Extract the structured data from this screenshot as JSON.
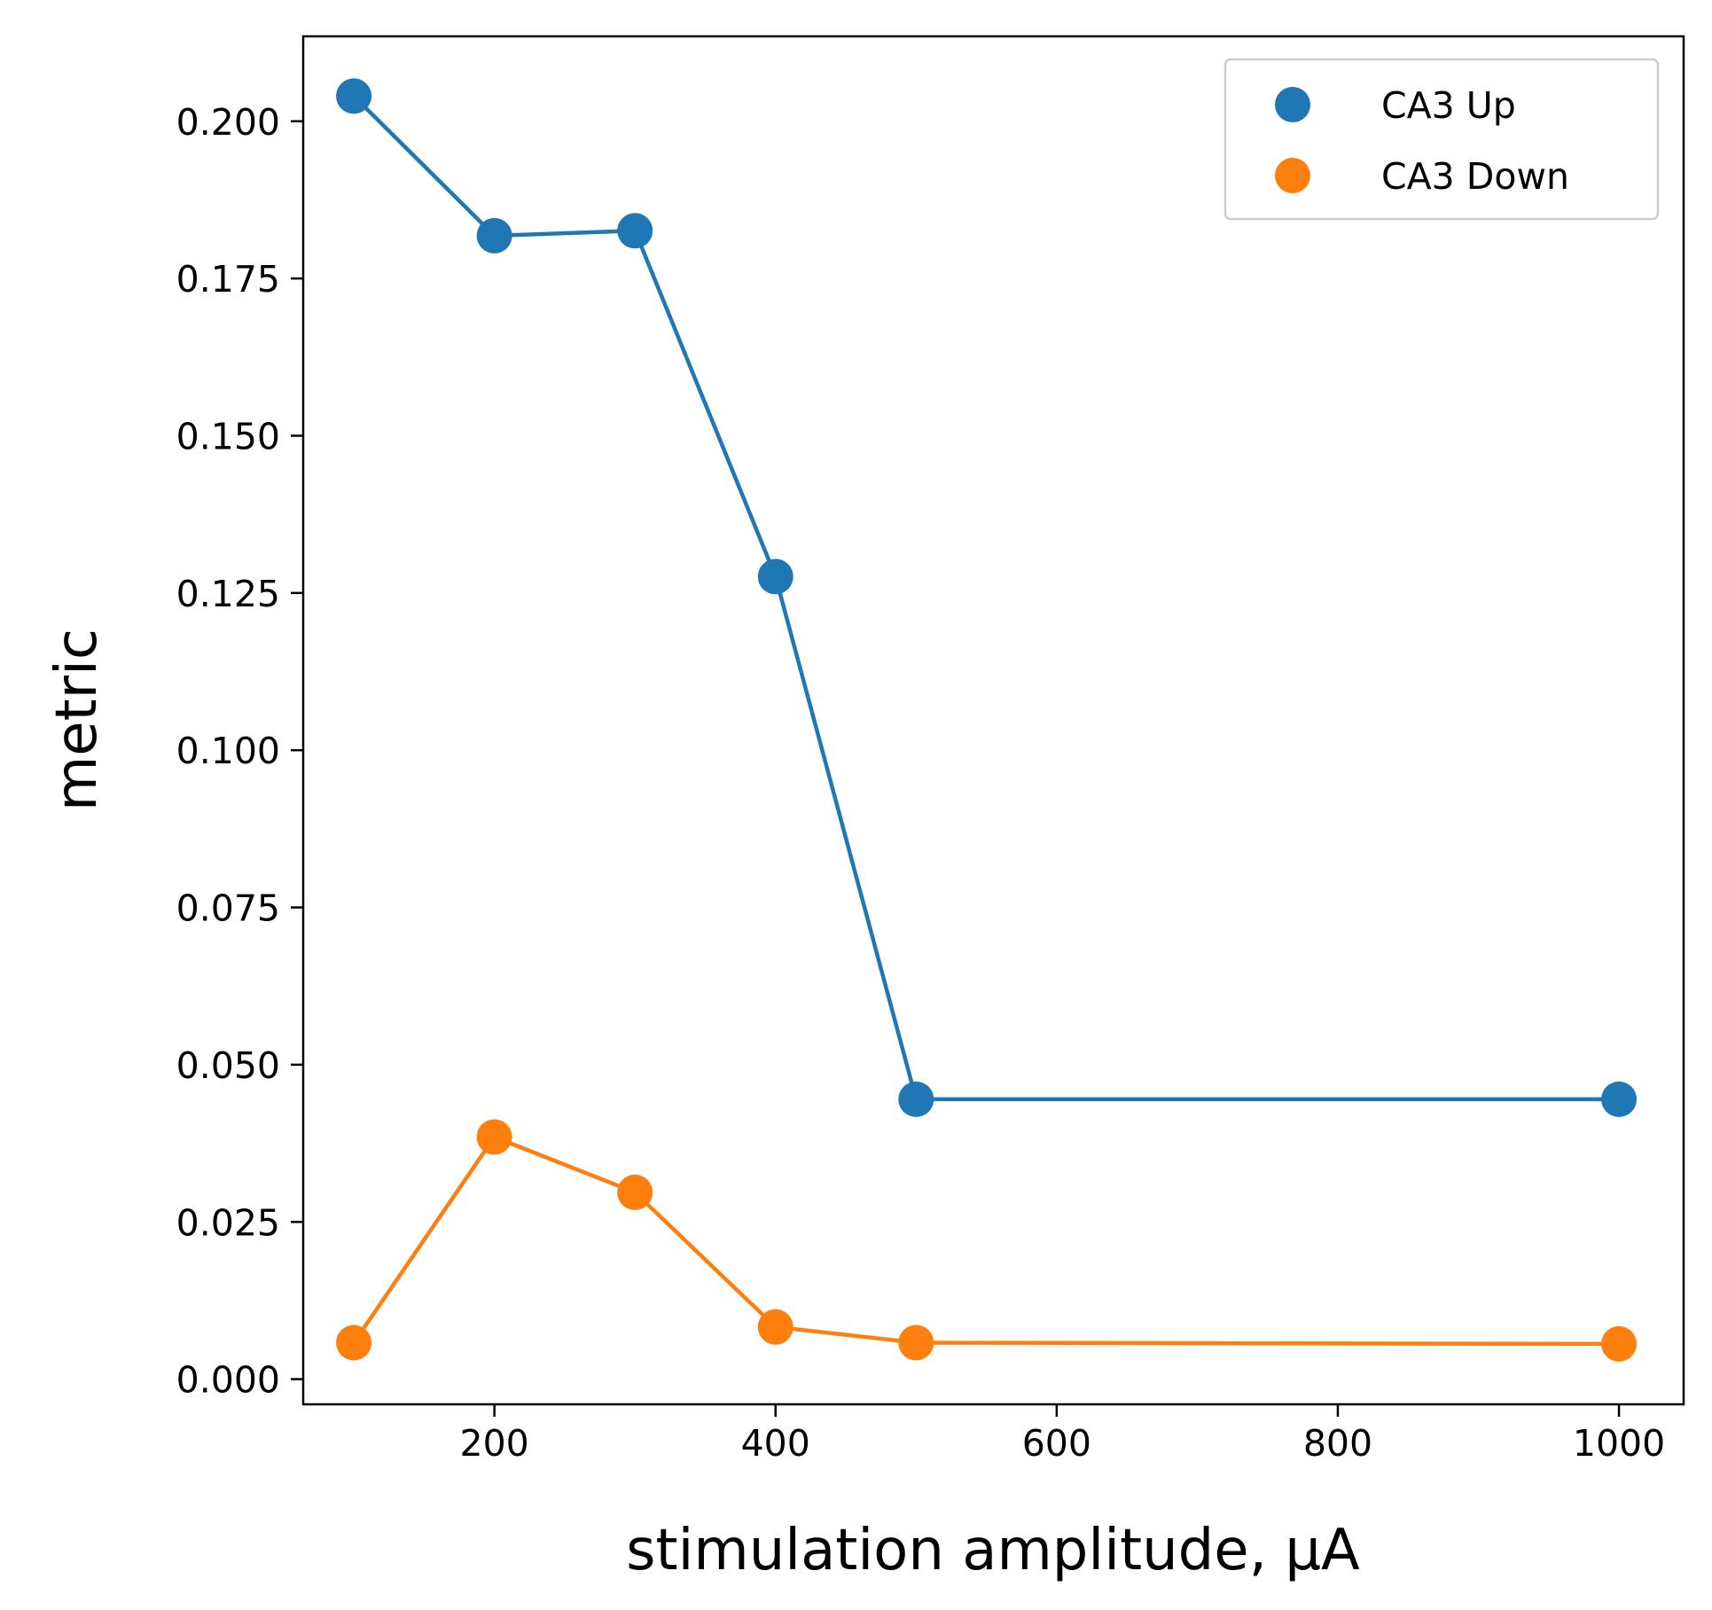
{
  "chart_data": {
    "type": "line",
    "xlabel": "stimulation amplitude, μA",
    "ylabel": "metric",
    "xlim": [
      64,
      1046
    ],
    "ylim": [
      -0.004,
      0.2135
    ],
    "xticks": [
      "200",
      "400",
      "600",
      "800",
      "1000"
    ],
    "yticks": [
      "0.000",
      "0.025",
      "0.050",
      "0.075",
      "0.100",
      "0.125",
      "0.150",
      "0.175",
      "0.200"
    ],
    "grid": false,
    "legend_position": "top-right",
    "x": [
      100,
      200,
      300,
      400,
      500,
      1000
    ],
    "series": [
      {
        "name": "CA3 Up",
        "color": "#1f77b4",
        "values": [
          0.204,
          0.1818,
          0.1826,
          0.1276,
          0.0445,
          0.0445
        ]
      },
      {
        "name": "CA3 Down",
        "color": "#ff7f0e",
        "values": [
          0.0058,
          0.0385,
          0.0297,
          0.0083,
          0.0058,
          0.0056
        ]
      }
    ]
  }
}
